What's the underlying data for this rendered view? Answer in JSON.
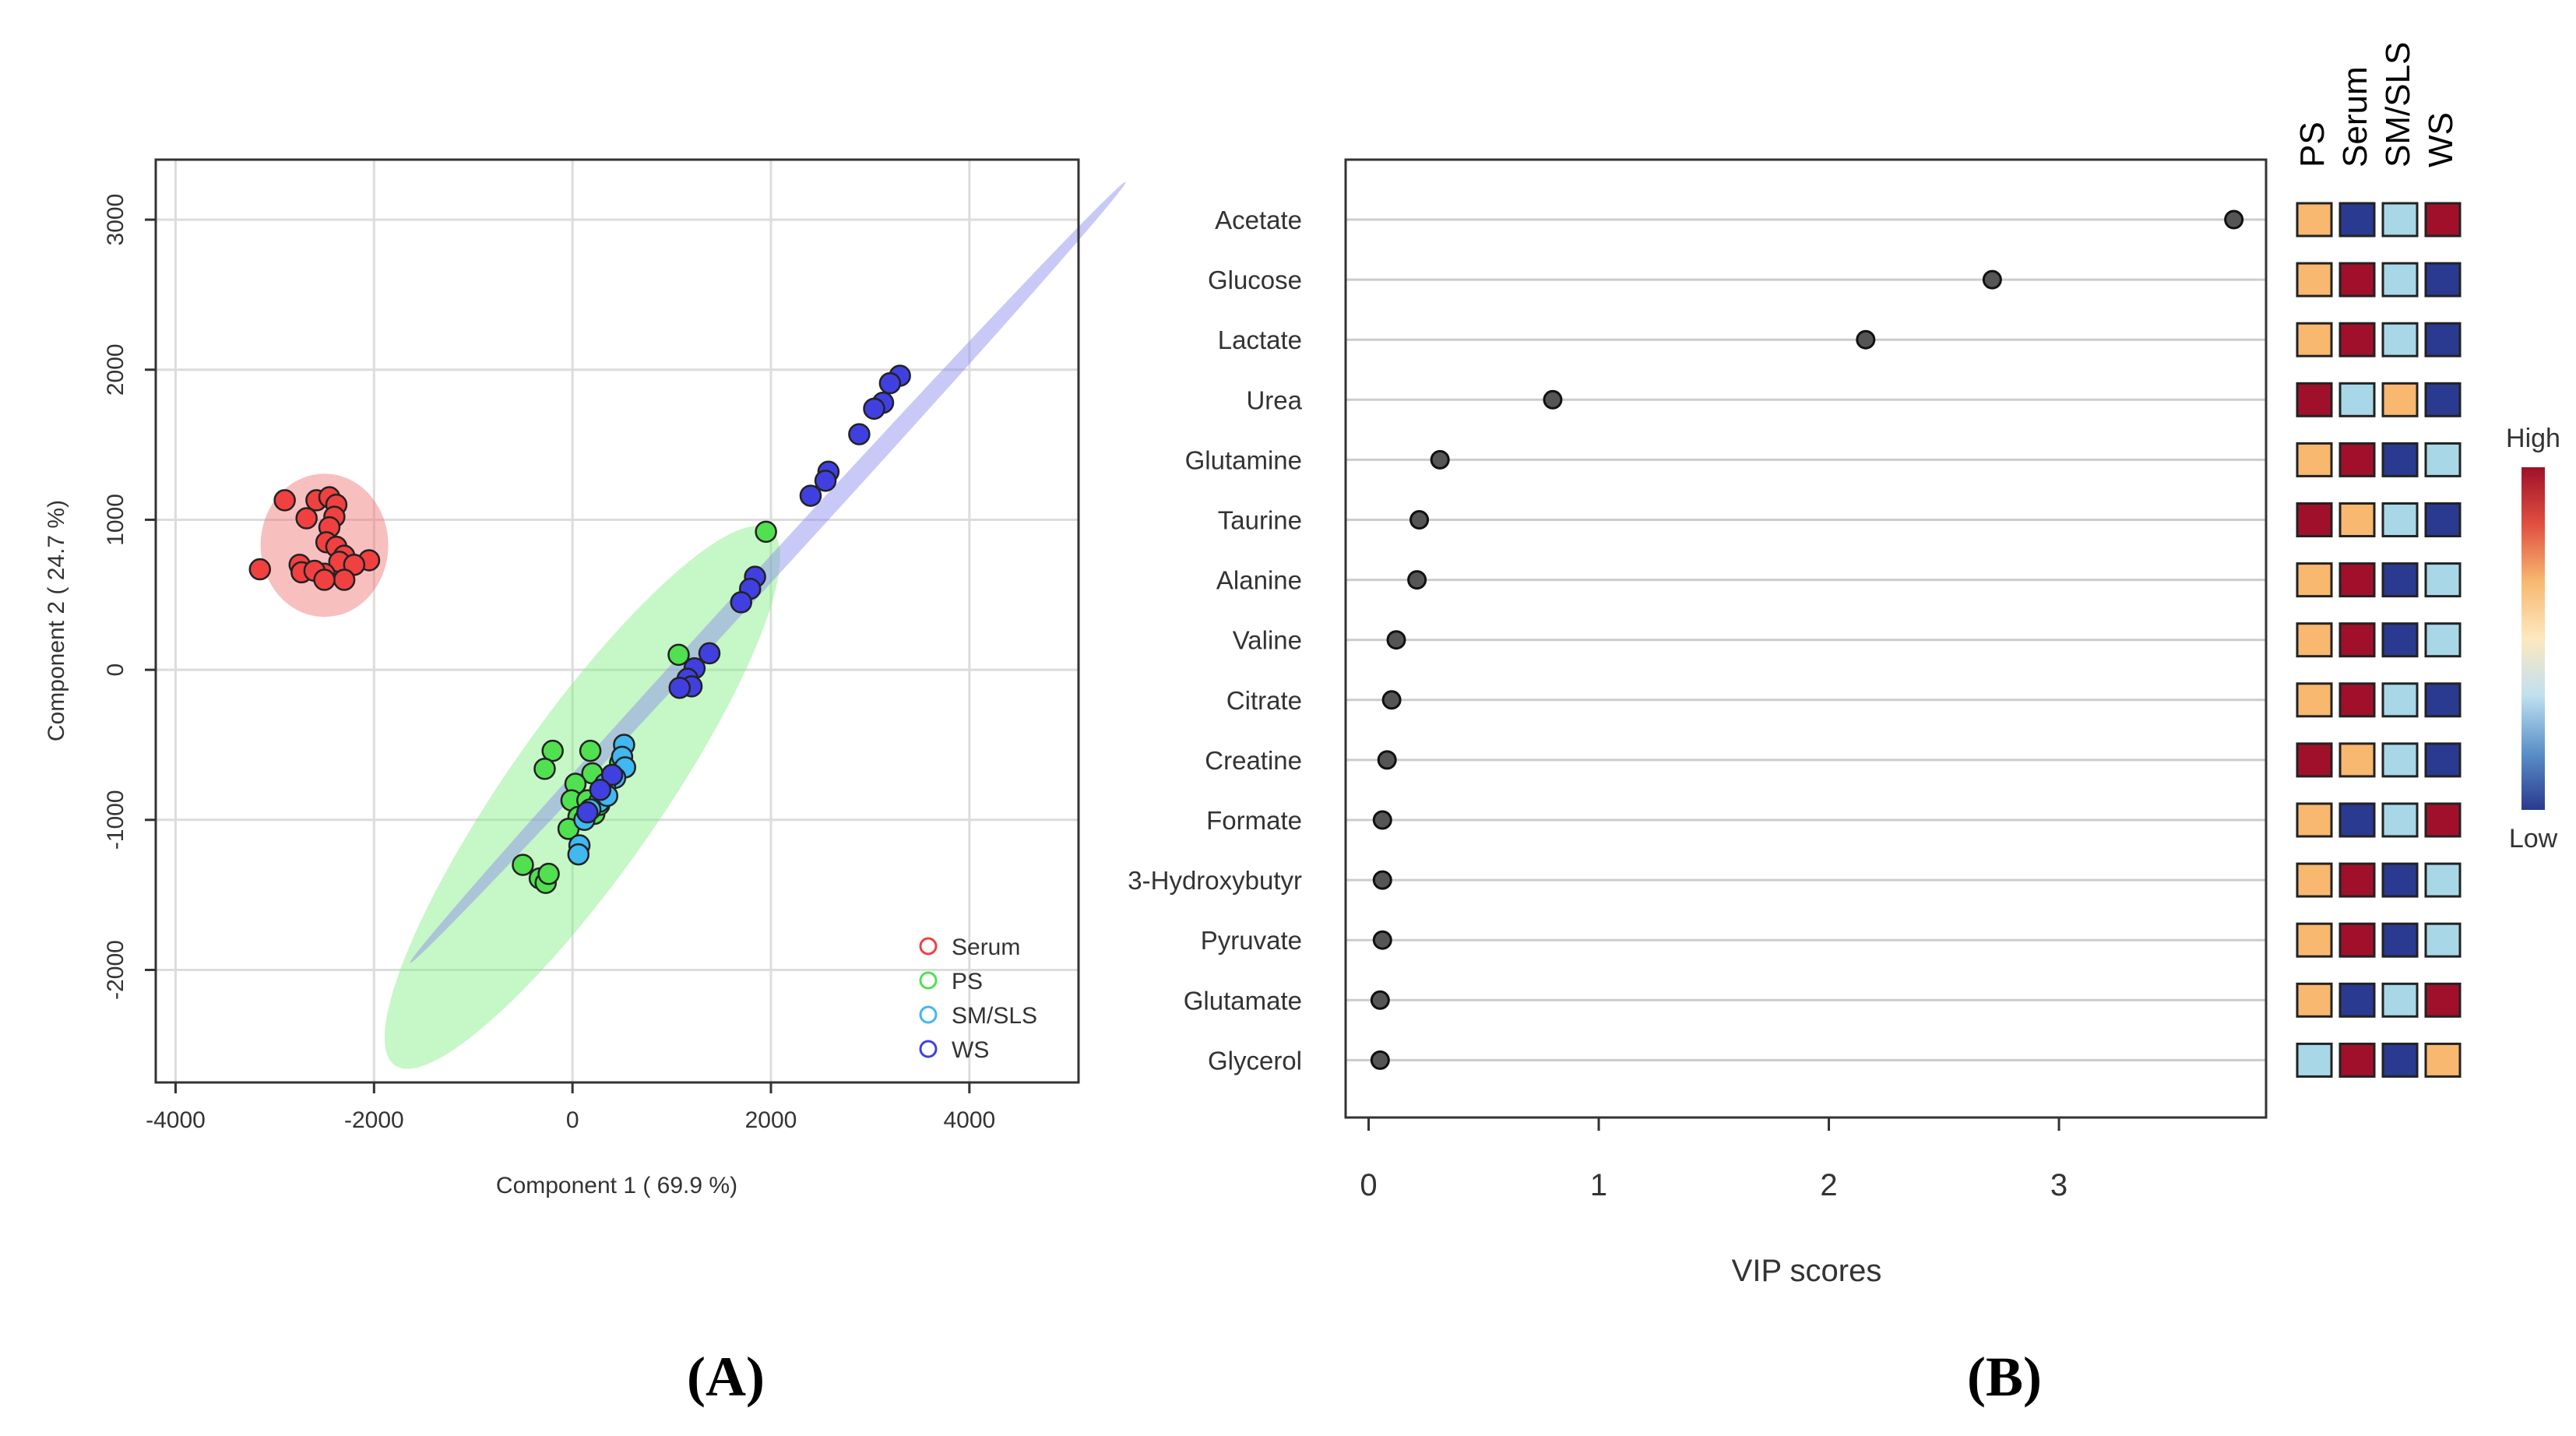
{
  "chart_data": [
    {
      "panel": "A",
      "type": "scatter",
      "title": "",
      "xlabel": "Component 1 ( 69.9 %)",
      "ylabel": "Component 2 ( 24.7 %)",
      "xlim": [
        -4200,
        5100
      ],
      "ylim": [
        -2750,
        3400
      ],
      "xticks": [
        -4000,
        -2000,
        0,
        2000,
        4000
      ],
      "yticks": [
        -2000,
        -1000,
        0,
        1000,
        2000,
        3000
      ],
      "grid": true,
      "legend_position": "bottom-right",
      "series": [
        {
          "name": "Serum",
          "color": "#f04040",
          "points": [
            {
              "x": -2900,
              "y": 1130
            },
            {
              "x": -2580,
              "y": 1130
            },
            {
              "x": -2450,
              "y": 1150
            },
            {
              "x": -2380,
              "y": 1100
            },
            {
              "x": -2680,
              "y": 1010
            },
            {
              "x": -2400,
              "y": 1020
            },
            {
              "x": -2450,
              "y": 950
            },
            {
              "x": -2480,
              "y": 850
            },
            {
              "x": -2380,
              "y": 820
            },
            {
              "x": -2300,
              "y": 760
            },
            {
              "x": -2050,
              "y": 730
            },
            {
              "x": -2350,
              "y": 720
            },
            {
              "x": -2750,
              "y": 700
            },
            {
              "x": -2200,
              "y": 700
            },
            {
              "x": -3150,
              "y": 670
            },
            {
              "x": -2730,
              "y": 650
            },
            {
              "x": -2500,
              "y": 640
            },
            {
              "x": -2600,
              "y": 660
            },
            {
              "x": -2300,
              "y": 600
            },
            {
              "x": -2500,
              "y": 600
            }
          ]
        },
        {
          "name": "PS",
          "color": "#50e050",
          "points": [
            {
              "x": 1950,
              "y": 920
            },
            {
              "x": 1070,
              "y": 100
            },
            {
              "x": -200,
              "y": -540
            },
            {
              "x": 180,
              "y": -540
            },
            {
              "x": -280,
              "y": -660
            },
            {
              "x": 200,
              "y": -690
            },
            {
              "x": 30,
              "y": -760
            },
            {
              "x": -10,
              "y": -870
            },
            {
              "x": 150,
              "y": -870
            },
            {
              "x": 60,
              "y": -980
            },
            {
              "x": -40,
              "y": -1060
            },
            {
              "x": 220,
              "y": -960
            },
            {
              "x": 480,
              "y": -620
            },
            {
              "x": -500,
              "y": -1300
            },
            {
              "x": -330,
              "y": -1390
            },
            {
              "x": -270,
              "y": -1420
            },
            {
              "x": -240,
              "y": -1360
            },
            {
              "x": 270,
              "y": -900
            }
          ]
        },
        {
          "name": "SM/SLS",
          "color": "#40b8f0",
          "points": [
            {
              "x": 520,
              "y": -500
            },
            {
              "x": 500,
              "y": -580
            },
            {
              "x": 530,
              "y": -650
            },
            {
              "x": 430,
              "y": -720
            },
            {
              "x": 330,
              "y": -760
            },
            {
              "x": 270,
              "y": -880
            },
            {
              "x": 180,
              "y": -930
            },
            {
              "x": 120,
              "y": -1000
            },
            {
              "x": 70,
              "y": -1170
            },
            {
              "x": 60,
              "y": -1230
            },
            {
              "x": 350,
              "y": -840
            }
          ]
        },
        {
          "name": "WS",
          "color": "#4040e0",
          "points": [
            {
              "x": 3300,
              "y": 1960
            },
            {
              "x": 3200,
              "y": 1910
            },
            {
              "x": 3130,
              "y": 1780
            },
            {
              "x": 3040,
              "y": 1740
            },
            {
              "x": 2890,
              "y": 1570
            },
            {
              "x": 2580,
              "y": 1320
            },
            {
              "x": 2550,
              "y": 1260
            },
            {
              "x": 2400,
              "y": 1160
            },
            {
              "x": 1840,
              "y": 620
            },
            {
              "x": 1790,
              "y": 540
            },
            {
              "x": 1700,
              "y": 450
            },
            {
              "x": 1380,
              "y": 110
            },
            {
              "x": 1230,
              "y": 10
            },
            {
              "x": 1160,
              "y": -60
            },
            {
              "x": 1200,
              "y": -110
            },
            {
              "x": 1080,
              "y": -120
            },
            {
              "x": 400,
              "y": -700
            },
            {
              "x": 280,
              "y": -800
            },
            {
              "x": 150,
              "y": -950
            }
          ]
        }
      ],
      "ellipses": [
        {
          "series": "Serum",
          "center_x": -2500,
          "center_y": 830,
          "color": "#f07070"
        },
        {
          "series": "PS",
          "center_x": 100,
          "center_y": -850,
          "color": "#80ee80"
        },
        {
          "series": "WS",
          "center_x": 1970,
          "center_y": 650,
          "color": "#8888ee"
        }
      ],
      "panel_label": "(A)"
    },
    {
      "panel": "B",
      "type": "dot",
      "xlabel": "VIP scores",
      "ylabel": "",
      "xlim": [
        -0.1,
        3.9
      ],
      "xticks": [
        0,
        1,
        2,
        3
      ],
      "categories": [
        "Acetate",
        "Glucose",
        "Lactate",
        "Urea",
        "Glutamine",
        "Taurine",
        "Alanine",
        "Valine",
        "Citrate",
        "Creatine",
        "Formate",
        "3-Hydroxybutyr",
        "Pyruvate",
        "Glutamate",
        "Glycerol"
      ],
      "values": [
        3.76,
        2.71,
        2.16,
        0.8,
        0.31,
        0.22,
        0.21,
        0.12,
        0.1,
        0.08,
        0.06,
        0.06,
        0.06,
        0.05,
        0.05
      ],
      "heatmap_columns": [
        "PS",
        "Serum",
        "SM/SLS",
        "WS"
      ],
      "heatmap_levels": [
        [
          3,
          0,
          2,
          4
        ],
        [
          3,
          4,
          2,
          0
        ],
        [
          3,
          4,
          2,
          0
        ],
        [
          4,
          2,
          3,
          0
        ],
        [
          3,
          4,
          0,
          2
        ],
        [
          4,
          3,
          2,
          0
        ],
        [
          3,
          4,
          0,
          2
        ],
        [
          3,
          4,
          0,
          2
        ],
        [
          3,
          4,
          2,
          0
        ],
        [
          4,
          3,
          2,
          0
        ],
        [
          3,
          0,
          2,
          4
        ],
        [
          3,
          4,
          0,
          2
        ],
        [
          3,
          4,
          0,
          2
        ],
        [
          3,
          0,
          2,
          4
        ],
        [
          2,
          4,
          0,
          3
        ]
      ],
      "level_colors": [
        "#2a3a90",
        "#7fb2d8",
        "#a8d8e8",
        "#f8b870",
        "#a0102a"
      ],
      "colorbar": {
        "high_label": "High",
        "low_label": "Low",
        "stops": [
          "#a0102a",
          "#e05040",
          "#f8b870",
          "#fde8c0",
          "#c0e0f0",
          "#5a90c8",
          "#2a3a90"
        ]
      },
      "dot_color": "#555555",
      "panel_label": "(B)"
    }
  ]
}
